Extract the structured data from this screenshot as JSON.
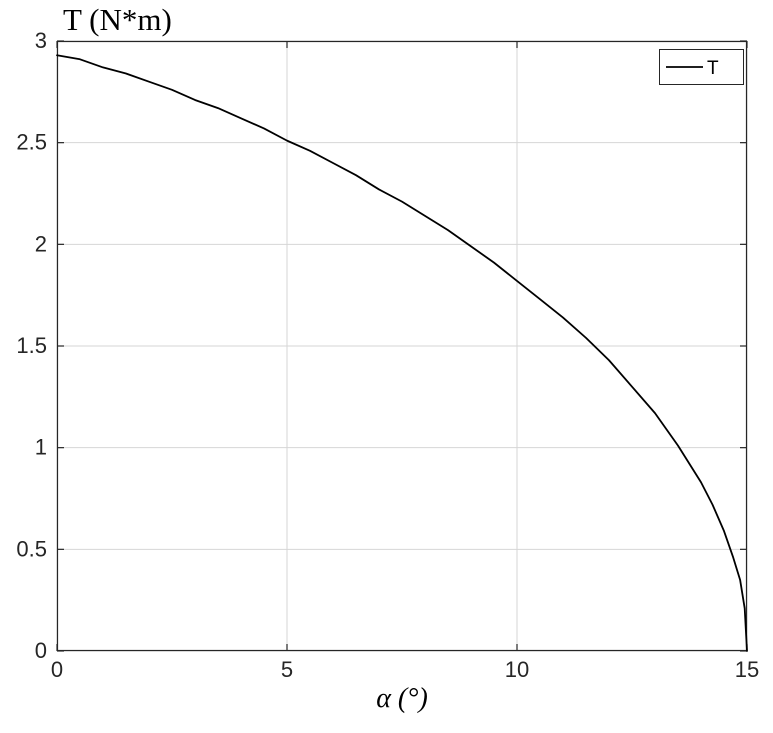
{
  "chart_data": {
    "type": "line",
    "title": "T (N*m)",
    "xlabel": "α (°)",
    "ylabel": "",
    "xlim": [
      0,
      15
    ],
    "ylim": [
      0,
      3
    ],
    "xticks": [
      0,
      5,
      10,
      15
    ],
    "yticks": [
      0,
      0.5,
      1,
      1.5,
      2,
      2.5,
      3
    ],
    "xtick_labels": [
      "0",
      "5",
      "10",
      "15"
    ],
    "ytick_labels": [
      "0",
      "0.5",
      "1",
      "1.5",
      "2",
      "2.5",
      "3"
    ],
    "grid": true,
    "legend": {
      "position": "top-right",
      "entries": [
        {
          "label": "T",
          "color": "#000000"
        }
      ]
    },
    "series": [
      {
        "name": "T",
        "color": "#000000",
        "x": [
          0,
          0.5,
          1,
          1.5,
          2,
          2.5,
          3,
          3.5,
          4,
          4.5,
          5,
          5.5,
          6,
          6.5,
          7,
          7.5,
          8,
          8.5,
          9,
          9.5,
          10,
          10.5,
          11,
          11.5,
          12,
          12.5,
          13,
          13.5,
          14,
          14.25,
          14.5,
          14.7,
          14.85,
          14.95,
          15
        ],
        "y": [
          2.93,
          2.91,
          2.87,
          2.84,
          2.8,
          2.76,
          2.71,
          2.67,
          2.62,
          2.57,
          2.51,
          2.46,
          2.4,
          2.34,
          2.27,
          2.21,
          2.14,
          2.07,
          1.99,
          1.91,
          1.82,
          1.73,
          1.64,
          1.54,
          1.43,
          1.3,
          1.17,
          1.01,
          0.83,
          0.72,
          0.59,
          0.46,
          0.35,
          0.21,
          0
        ]
      }
    ]
  },
  "colors": {
    "background": "#ffffff",
    "line": "#000000",
    "grid": "#d6d6d6",
    "axis_box": "#262626",
    "tick_text": "#262626"
  }
}
